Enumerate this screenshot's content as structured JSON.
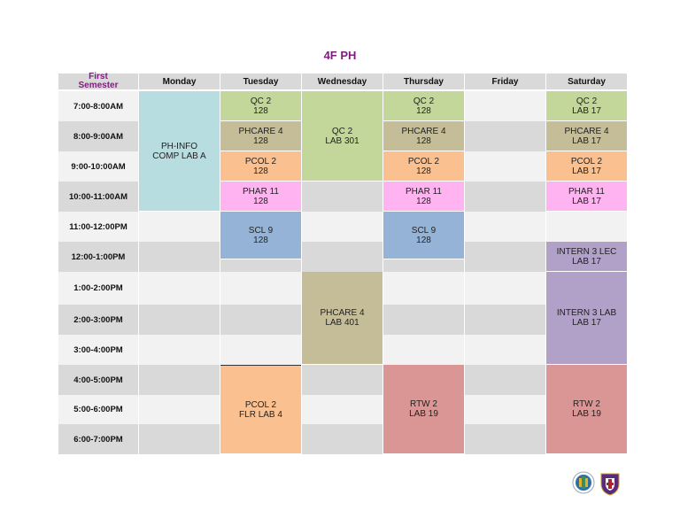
{
  "title": "4F PH",
  "header": {
    "first_line1": "First",
    "first_line2": "Semester",
    "days": [
      "Monday",
      "Tuesday",
      "Wednesday",
      "Thursday",
      "Friday",
      "Saturday"
    ]
  },
  "times": [
    "7:00-8:00AM",
    "8:00-9:00AM",
    "9:00-10:00AM",
    "10:00-11:00AM",
    "11:00-12:00PM",
    "12:00-1:00PM",
    "1:00-2:00PM",
    "2:00-3:00PM",
    "3:00-4:00PM",
    "4:00-5:00PM",
    "5:00-6:00PM",
    "6:00-7:00PM"
  ],
  "classes": {
    "mon_phinfo": {
      "line1": "PH-INFO",
      "line2": "COMP LAB A"
    },
    "tue_qc2": {
      "line1": "QC 2",
      "line2": "128"
    },
    "tue_phcare4": {
      "line1": "PHCARE 4",
      "line2": "128"
    },
    "tue_pcol2": {
      "line1": "PCOL 2",
      "line2": "128"
    },
    "tue_phar11": {
      "line1": "PHAR 11",
      "line2": "128"
    },
    "tue_scl9": {
      "line1": "SCL 9",
      "line2": "128"
    },
    "tue_pcol2_lab": {
      "line1": "PCOL 2",
      "line2": "FLR LAB 4"
    },
    "wed_qc2": {
      "line1": "QC 2",
      "line2": "LAB 301"
    },
    "wed_phcare4": {
      "line1": "PHCARE 4",
      "line2": "LAB 401"
    },
    "thu_qc2": {
      "line1": "QC 2",
      "line2": "128"
    },
    "thu_phcare4": {
      "line1": "PHCARE 4",
      "line2": "128"
    },
    "thu_pcol2": {
      "line1": "PCOL 2",
      "line2": "128"
    },
    "thu_phar11": {
      "line1": "PHAR 11",
      "line2": "128"
    },
    "thu_scl9": {
      "line1": "SCL 9",
      "line2": "128"
    },
    "thu_rtw2": {
      "line1": "RTW 2",
      "line2": "LAB 19"
    },
    "sat_qc2": {
      "line1": "QC 2",
      "line2": "LAB 17"
    },
    "sat_phcare4": {
      "line1": "PHCARE 4",
      "line2": "LAB 17"
    },
    "sat_pcol2": {
      "line1": "PCOL 2",
      "line2": "LAB 17"
    },
    "sat_phar11": {
      "line1": "PHAR 11",
      "line2": "LAB 17"
    },
    "sat_intern3lec": {
      "line1": "INTERN 3 LEC",
      "line2": "LAB 17"
    },
    "sat_intern3lab": {
      "line1": "INTERN 3 LAB",
      "line2": "LAB 17"
    },
    "sat_rtw2": {
      "line1": "RTW 2",
      "line2": "LAB 19"
    }
  },
  "colors": {
    "title": "#7b1f7b",
    "green": "#c4d79b",
    "khaki": "#c4bd97",
    "orange": "#fac090",
    "pink": "#ffb3f0",
    "blue": "#95b3d7",
    "teal": "#b7dde0",
    "lavender": "#b1a0c7",
    "red": "#da9694"
  },
  "logos": [
    "college-seal-icon",
    "university-crest-icon"
  ]
}
